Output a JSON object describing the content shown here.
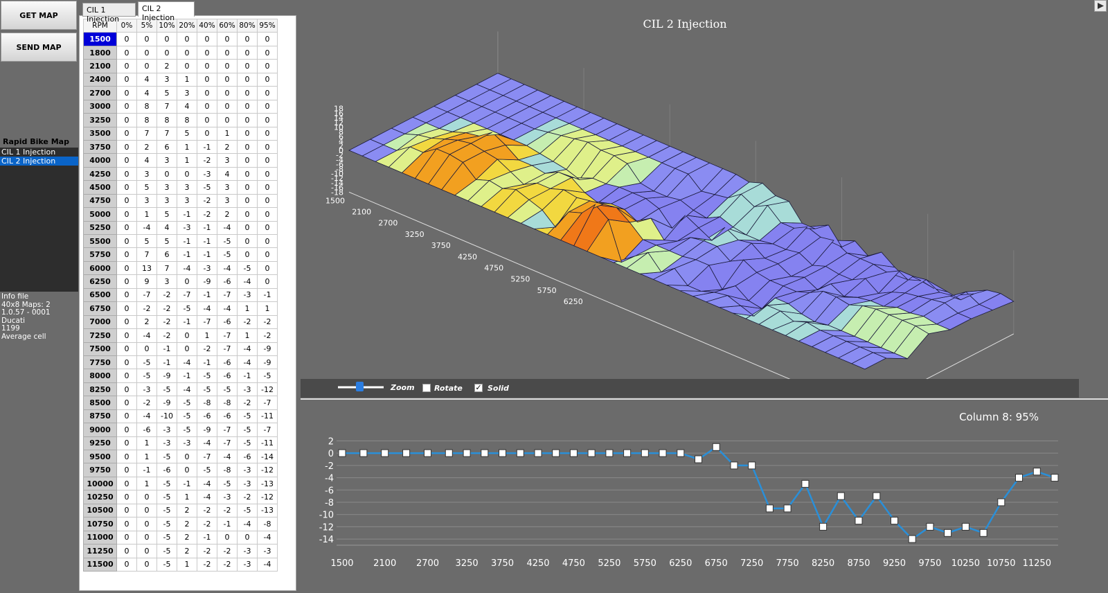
{
  "buttons": {
    "get_map": "GET MAP",
    "send_map": "SEND MAP"
  },
  "map_file": {
    "label": "Rapid Bike Map file",
    "items": [
      "CIL 1 Injection",
      "CIL 2 Injection"
    ],
    "selected": 1
  },
  "info": [
    "Info file",
    "40x8 Maps: 2",
    "1.0.57 - 0001",
    "Ducati",
    "1199",
    "Average cell"
  ],
  "tabs": [
    "CIL 1 Injection",
    "CIL 2 Injection"
  ],
  "active_tab": 1,
  "table": {
    "headers": [
      "RPM",
      "0%",
      "5%",
      "10%",
      "20%",
      "40%",
      "60%",
      "80%",
      "95%"
    ],
    "rows": [
      [
        "1500",
        0,
        0,
        0,
        0,
        0,
        0,
        0,
        0
      ],
      [
        "1800",
        0,
        0,
        0,
        0,
        0,
        0,
        0,
        0
      ],
      [
        "2100",
        0,
        0,
        2,
        0,
        0,
        0,
        0,
        0
      ],
      [
        "2400",
        0,
        4,
        3,
        1,
        0,
        0,
        0,
        0
      ],
      [
        "2700",
        0,
        4,
        5,
        3,
        0,
        0,
        0,
        0
      ],
      [
        "3000",
        0,
        8,
        7,
        4,
        0,
        0,
        0,
        0
      ],
      [
        "3250",
        0,
        8,
        8,
        8,
        0,
        0,
        0,
        0
      ],
      [
        "3500",
        0,
        7,
        7,
        5,
        0,
        1,
        0,
        0
      ],
      [
        "3750",
        0,
        2,
        6,
        1,
        -1,
        2,
        0,
        0
      ],
      [
        "4000",
        0,
        4,
        3,
        1,
        -2,
        3,
        0,
        0
      ],
      [
        "4250",
        0,
        3,
        0,
        0,
        -3,
        4,
        0,
        0
      ],
      [
        "4500",
        0,
        5,
        3,
        3,
        -5,
        3,
        0,
        0
      ],
      [
        "4750",
        0,
        3,
        3,
        3,
        -2,
        3,
        0,
        0
      ],
      [
        "5000",
        0,
        1,
        5,
        -1,
        -2,
        2,
        0,
        0
      ],
      [
        "5250",
        0,
        -4,
        4,
        -3,
        -1,
        -4,
        0,
        0
      ],
      [
        "5500",
        0,
        5,
        5,
        -1,
        -1,
        -5,
        0,
        0
      ],
      [
        "5750",
        0,
        7,
        6,
        -1,
        -1,
        -5,
        0,
        0
      ],
      [
        "6000",
        0,
        13,
        7,
        -4,
        -3,
        -4,
        -5,
        0
      ],
      [
        "6250",
        0,
        9,
        3,
        0,
        -9,
        -6,
        -4,
        0
      ],
      [
        "6500",
        0,
        -7,
        -2,
        -7,
        -1,
        -7,
        -3,
        -1
      ],
      [
        "6750",
        0,
        -2,
        -2,
        -5,
        -4,
        -4,
        1,
        1
      ],
      [
        "7000",
        0,
        2,
        -2,
        -1,
        -7,
        -6,
        -2,
        -2
      ],
      [
        "7250",
        0,
        -4,
        -2,
        0,
        1,
        -7,
        1,
        -2
      ],
      [
        "7500",
        0,
        0,
        -1,
        0,
        -2,
        -7,
        -4,
        -9
      ],
      [
        "7750",
        0,
        -5,
        -1,
        -4,
        -1,
        -6,
        -4,
        -9
      ],
      [
        "8000",
        0,
        -5,
        -9,
        -1,
        -5,
        -6,
        -1,
        -5
      ],
      [
        "8250",
        0,
        -3,
        -5,
        -4,
        -5,
        -5,
        -3,
        -12
      ],
      [
        "8500",
        0,
        -2,
        -9,
        -5,
        -8,
        -8,
        -2,
        -7
      ],
      [
        "8750",
        0,
        -4,
        -10,
        -5,
        -6,
        -6,
        -5,
        -11
      ],
      [
        "9000",
        0,
        -6,
        -3,
        -5,
        -9,
        -7,
        -5,
        -7
      ],
      [
        "9250",
        0,
        1,
        -3,
        -3,
        -4,
        -7,
        -5,
        -11
      ],
      [
        "9500",
        0,
        1,
        -5,
        0,
        -7,
        -4,
        -6,
        -14
      ],
      [
        "9750",
        0,
        -1,
        -6,
        0,
        -5,
        -8,
        -3,
        -12
      ],
      [
        "10000",
        0,
        1,
        -5,
        -1,
        -4,
        -5,
        -3,
        -13
      ],
      [
        "10250",
        0,
        0,
        -5,
        1,
        -4,
        -3,
        -2,
        -12
      ],
      [
        "10500",
        0,
        0,
        -5,
        2,
        -2,
        -2,
        -5,
        -13
      ],
      [
        "10750",
        0,
        0,
        -5,
        2,
        -2,
        -1,
        -4,
        -8
      ],
      [
        "11000",
        0,
        0,
        -5,
        2,
        -1,
        0,
        0,
        -4
      ],
      [
        "11250",
        0,
        0,
        -5,
        2,
        -2,
        -2,
        -3,
        -3
      ],
      [
        "11500",
        0,
        0,
        -5,
        1,
        -2,
        -2,
        -3,
        -4
      ]
    ]
  },
  "surface": {
    "title": "CIL 2 Injection",
    "z_ticks": [
      "18",
      "16",
      "14",
      "12",
      "10",
      "8",
      "6",
      "4",
      "2",
      "0",
      "-2",
      "-4",
      "-6",
      "-8",
      "-10",
      "-12",
      "-14",
      "-16",
      "-18"
    ],
    "rpm_ticks": [
      "1500",
      "2100",
      "2700",
      "3250",
      "3750",
      "4250",
      "4750",
      "5250",
      "5750",
      "6250"
    ]
  },
  "toolbar": {
    "zoom": "Zoom",
    "rotate": "Rotate",
    "solid": "Solid",
    "rotate_checked": false,
    "solid_checked": true
  },
  "chart_data": {
    "type": "line",
    "title": "Column 8: 95%",
    "x": [
      1500,
      1800,
      2100,
      2400,
      2700,
      3000,
      3250,
      3500,
      3750,
      4000,
      4250,
      4500,
      4750,
      5000,
      5250,
      5500,
      5750,
      6000,
      6250,
      6500,
      6750,
      7000,
      7250,
      7500,
      7750,
      8000,
      8250,
      8500,
      8750,
      9000,
      9250,
      9500,
      9750,
      10000,
      10250,
      10500,
      10750,
      11000,
      11250,
      11500
    ],
    "values": [
      0,
      0,
      0,
      0,
      0,
      0,
      0,
      0,
      0,
      0,
      0,
      0,
      0,
      0,
      0,
      0,
      0,
      0,
      0,
      -1,
      1,
      -2,
      -2,
      -9,
      -9,
      -5,
      -12,
      -7,
      -11,
      -7,
      -11,
      -14,
      -12,
      -13,
      -12,
      -13,
      -8,
      -4,
      -3,
      -4
    ],
    "x_ticks": [
      "1500",
      "2100",
      "2700",
      "3250",
      "3750",
      "4250",
      "4750",
      "5250",
      "5750",
      "6250",
      "6750",
      "7250",
      "7750",
      "8250",
      "8750",
      "9250",
      "9750",
      "10250",
      "10750",
      "11250"
    ],
    "y_ticks": [
      2,
      0,
      -2,
      -4,
      -6,
      -8,
      -10,
      -12,
      -14
    ],
    "ylim": [
      -15,
      2.5
    ],
    "grid": true,
    "line_color": "#2a8fd8"
  }
}
